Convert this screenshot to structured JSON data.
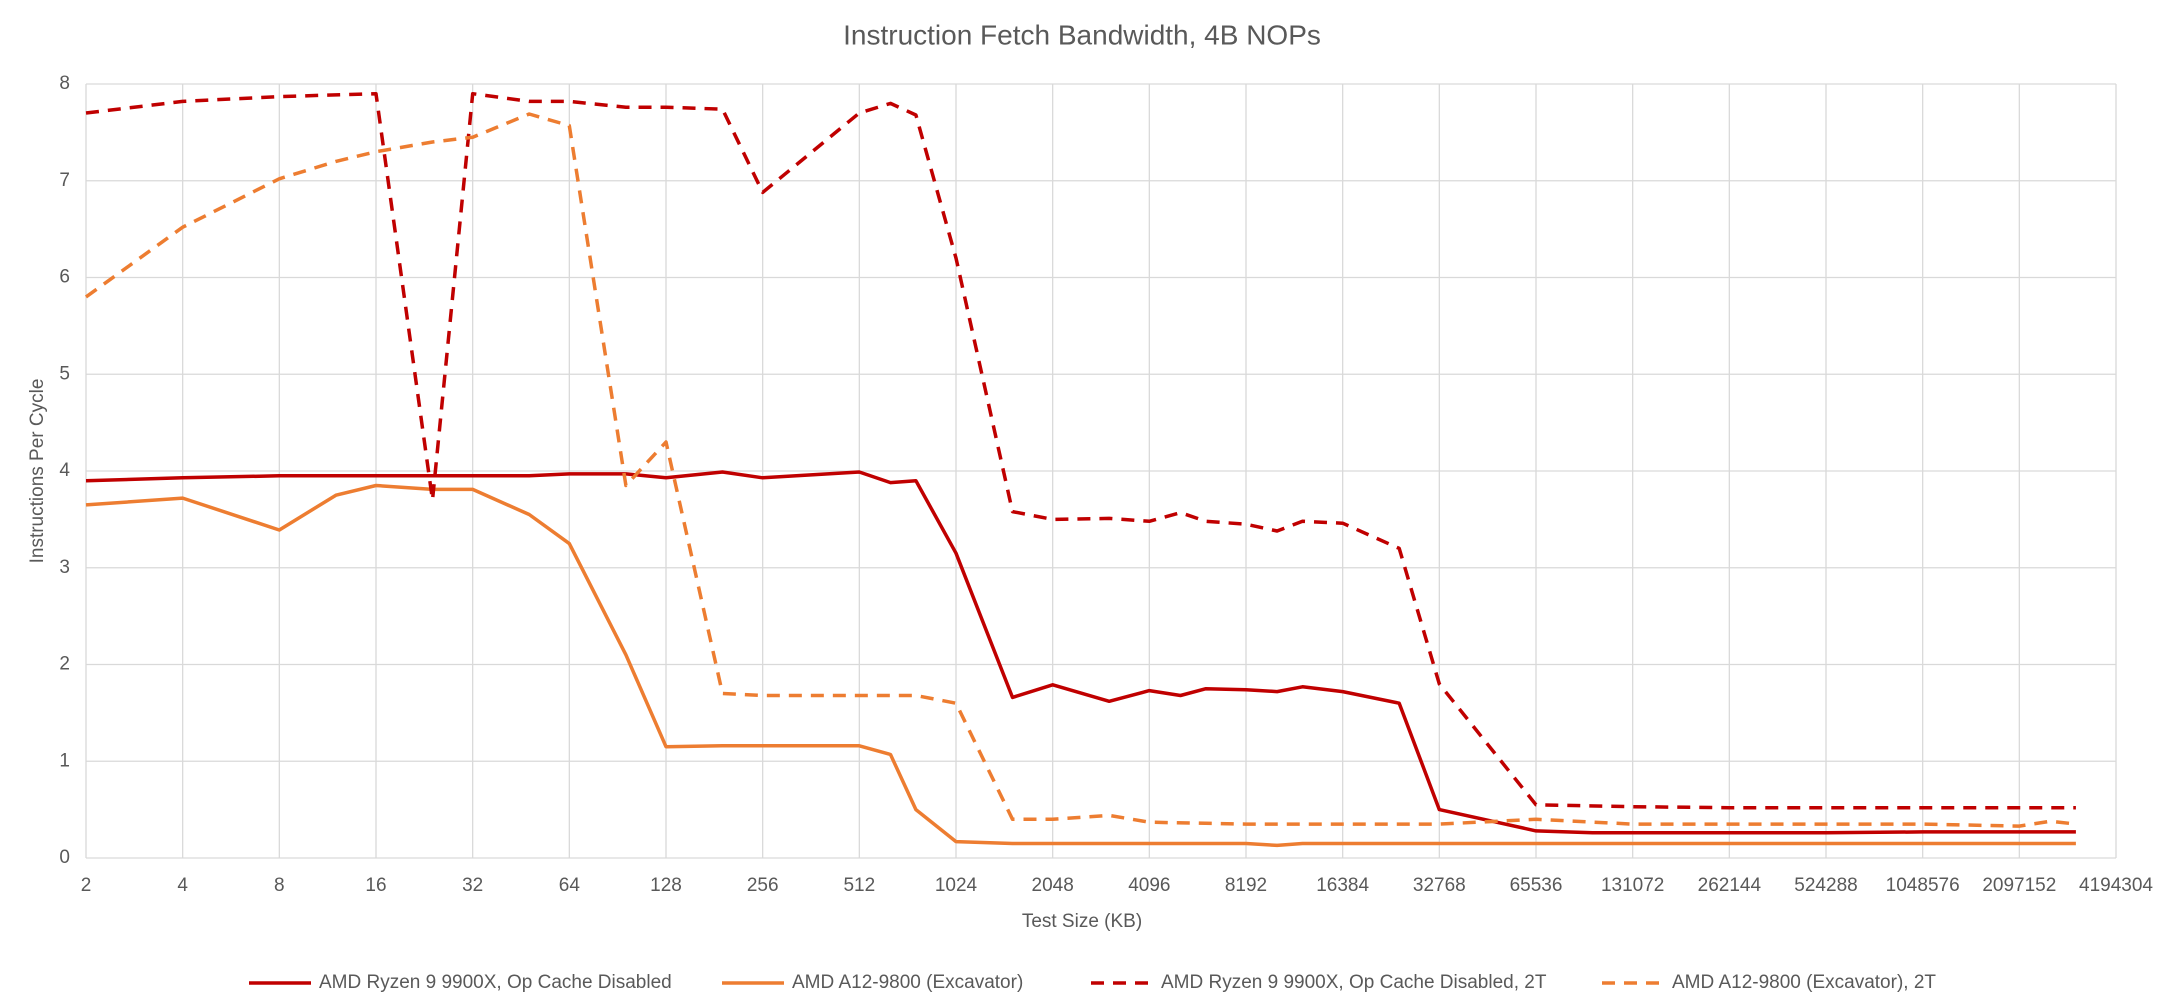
{
  "chart_data": {
    "type": "line",
    "title": "Instruction Fetch Bandwidth, 4B NOPs",
    "x_label": "Test Size (KB)",
    "y_label": "Instructions Per Cycle",
    "x_scale": "log2",
    "xlim": [
      2,
      4194304
    ],
    "xticks": [
      2,
      4,
      8,
      16,
      32,
      64,
      128,
      256,
      512,
      1024,
      2048,
      4096,
      8192,
      16384,
      32768,
      65536,
      131072,
      262144,
      524288,
      1048576,
      2097152,
      4194304
    ],
    "ylim": [
      0,
      8
    ],
    "yticks": [
      0,
      1,
      2,
      3,
      4,
      5,
      6,
      7,
      8
    ],
    "grid": true,
    "legend": "bottom",
    "series": [
      {
        "name": "AMD Ryzen 9 9900X, Op Cache Disabled",
        "color": "#c00000",
        "dash": "solid",
        "x": [
          2,
          4,
          8,
          16,
          32,
          48,
          64,
          96,
          128,
          192,
          256,
          512,
          640,
          768,
          1024,
          1536,
          2048,
          3072,
          4096,
          5120,
          6144,
          8192,
          10240,
          12288,
          16384,
          24576,
          32768,
          65536,
          98304,
          131072,
          262144,
          524288,
          1048576,
          2097152,
          3145728
        ],
        "values": [
          3.9,
          3.93,
          3.95,
          3.95,
          3.95,
          3.95,
          3.97,
          3.97,
          3.93,
          3.99,
          3.93,
          3.99,
          3.88,
          3.9,
          3.15,
          1.66,
          1.79,
          1.62,
          1.73,
          1.68,
          1.75,
          1.74,
          1.72,
          1.77,
          1.72,
          1.6,
          0.5,
          0.28,
          0.26,
          0.26,
          0.26,
          0.26,
          0.27,
          0.27,
          0.27
        ]
      },
      {
        "name": "AMD A12-9800 (Excavator)",
        "color": "#ed7d31",
        "dash": "solid",
        "x": [
          2,
          4,
          8,
          12,
          16,
          24,
          32,
          48,
          64,
          96,
          128,
          192,
          256,
          512,
          640,
          768,
          1024,
          1536,
          2048,
          4096,
          8192,
          10240,
          12288,
          16384,
          65536,
          262144,
          1048576,
          3145728
        ],
        "values": [
          3.65,
          3.72,
          3.39,
          3.75,
          3.85,
          3.81,
          3.81,
          3.55,
          3.25,
          2.1,
          1.15,
          1.16,
          1.16,
          1.16,
          1.07,
          0.5,
          0.17,
          0.15,
          0.15,
          0.15,
          0.15,
          0.13,
          0.15,
          0.15,
          0.15,
          0.15,
          0.15,
          0.15
        ]
      },
      {
        "name": "AMD Ryzen 9 9900X, Op Cache Disabled, 2T",
        "color": "#c00000",
        "dash": "dashed",
        "x": [
          2,
          4,
          8,
          16,
          24,
          32,
          48,
          64,
          96,
          128,
          192,
          256,
          512,
          640,
          768,
          1024,
          1536,
          2048,
          3072,
          4096,
          5120,
          6144,
          8192,
          10240,
          12288,
          16384,
          24576,
          32768,
          65536,
          131072,
          262144,
          524288,
          1048576,
          3145728
        ],
        "values": [
          7.7,
          7.82,
          7.87,
          7.9,
          3.7,
          7.9,
          7.82,
          7.82,
          7.76,
          7.76,
          7.74,
          6.88,
          7.7,
          7.8,
          7.68,
          6.2,
          3.58,
          3.5,
          3.51,
          3.48,
          3.57,
          3.48,
          3.45,
          3.38,
          3.48,
          3.46,
          3.2,
          1.8,
          0.55,
          0.53,
          0.52,
          0.52,
          0.52,
          0.52
        ]
      },
      {
        "name": "AMD A12-9800 (Excavator), 2T",
        "color": "#ed7d31",
        "dash": "dashed",
        "x": [
          2,
          4,
          8,
          12,
          16,
          24,
          32,
          48,
          64,
          96,
          128,
          192,
          256,
          512,
          768,
          1024,
          1536,
          2048,
          3072,
          4096,
          8192,
          16384,
          32768,
          65536,
          131072,
          524288,
          1048576,
          2097152,
          2621440,
          3145728
        ],
        "values": [
          5.8,
          6.52,
          7.02,
          7.2,
          7.3,
          7.4,
          7.45,
          7.69,
          7.57,
          3.85,
          4.3,
          1.7,
          1.68,
          1.68,
          1.68,
          1.6,
          0.4,
          0.4,
          0.44,
          0.37,
          0.35,
          0.35,
          0.35,
          0.4,
          0.35,
          0.35,
          0.35,
          0.33,
          0.38,
          0.35
        ]
      }
    ]
  }
}
